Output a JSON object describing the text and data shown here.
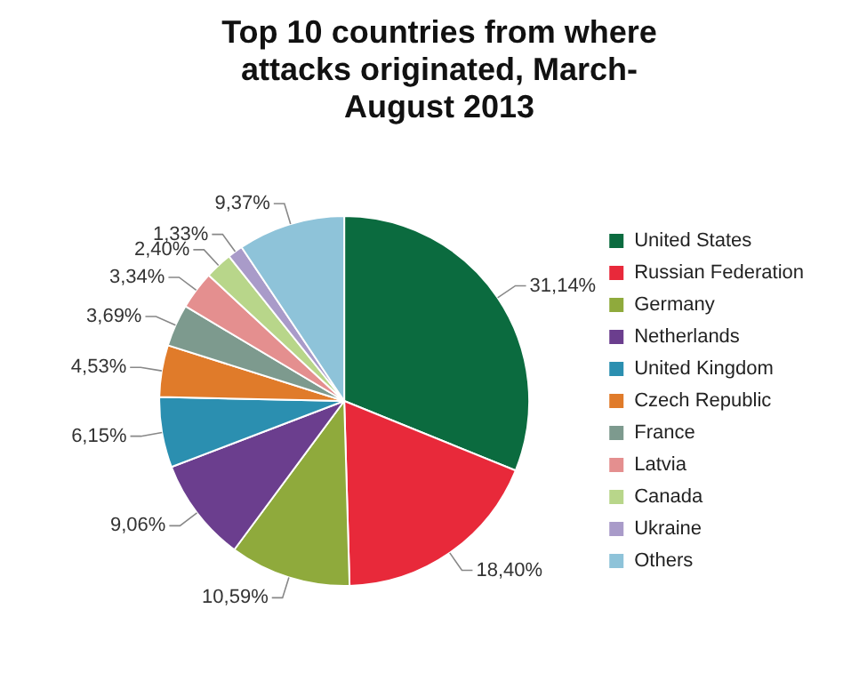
{
  "chart_data": {
    "type": "pie",
    "title": "Top 10 countries from where attacks originated, March-August 2013",
    "categories": [
      "United States",
      "Russian Federation",
      "Germany",
      "Netherlands",
      "United Kingdom",
      "Czech Republic",
      "France",
      "Latvia",
      "Canada",
      "Ukraine",
      "Others"
    ],
    "values": [
      31.14,
      18.4,
      10.59,
      9.06,
      6.15,
      4.53,
      3.69,
      3.34,
      2.4,
      1.33,
      9.37
    ],
    "value_labels": [
      "31,14%",
      "18,40%",
      "10,59%",
      "9,06%",
      "6,15%",
      "4,53%",
      "3,69%",
      "3,34%",
      "2,40%",
      "1,33%",
      "9,37%"
    ],
    "colors": [
      "#0b6b3f",
      "#e8293a",
      "#8faa3c",
      "#6b3e8e",
      "#2b8fb0",
      "#e07b2a",
      "#7d9a8e",
      "#e48f8f",
      "#b8d68a",
      "#a99bc9",
      "#8ec3d9"
    ],
    "legend": "right"
  }
}
